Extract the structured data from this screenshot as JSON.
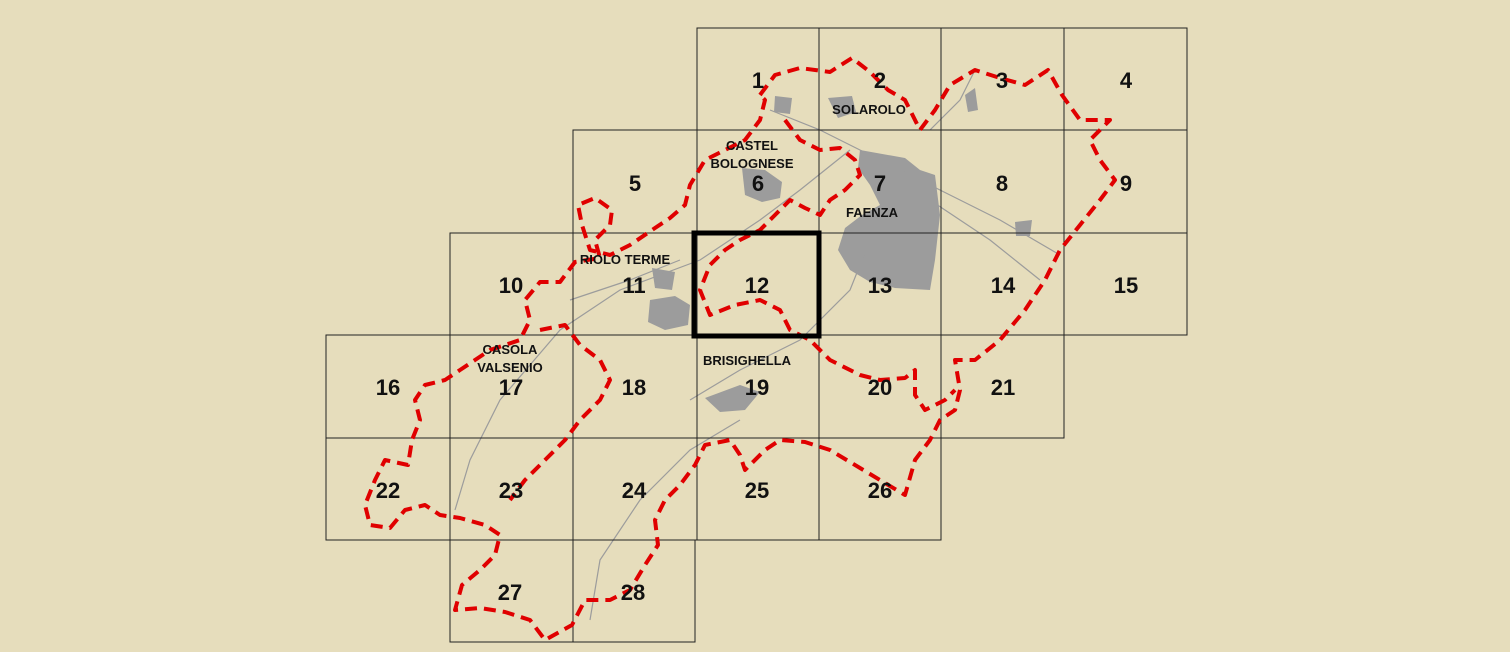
{
  "background_color": "#e6ddbc",
  "grid_line_color": "#222222",
  "boundary_color": "#e00000",
  "urban_color": "#9c9c9c",
  "highlighted_tile": "12",
  "tiles": [
    {
      "id": "1",
      "label": "1"
    },
    {
      "id": "2",
      "label": "2"
    },
    {
      "id": "3",
      "label": "3"
    },
    {
      "id": "4",
      "label": "4"
    },
    {
      "id": "5",
      "label": "5"
    },
    {
      "id": "6",
      "label": "6"
    },
    {
      "id": "7",
      "label": "7"
    },
    {
      "id": "8",
      "label": "8"
    },
    {
      "id": "9",
      "label": "9"
    },
    {
      "id": "10",
      "label": "10"
    },
    {
      "id": "11",
      "label": "11"
    },
    {
      "id": "12",
      "label": "12"
    },
    {
      "id": "13",
      "label": "13"
    },
    {
      "id": "14",
      "label": "14"
    },
    {
      "id": "15",
      "label": "15"
    },
    {
      "id": "16",
      "label": "16"
    },
    {
      "id": "17",
      "label": "17"
    },
    {
      "id": "18",
      "label": "18"
    },
    {
      "id": "19",
      "label": "19"
    },
    {
      "id": "20",
      "label": "20"
    },
    {
      "id": "21",
      "label": "21"
    },
    {
      "id": "22",
      "label": "22"
    },
    {
      "id": "23",
      "label": "23"
    },
    {
      "id": "24",
      "label": "24"
    },
    {
      "id": "25",
      "label": "25"
    },
    {
      "id": "26",
      "label": "26"
    },
    {
      "id": "27",
      "label": "27"
    },
    {
      "id": "28",
      "label": "28"
    }
  ],
  "towns": {
    "solarolo": "SOLAROLO",
    "castel_1": "CASTEL",
    "castel_2": "BOLOGNESE",
    "faenza": "FAENZA",
    "riolo_terme": "RIOLO TERME",
    "casola_1": "CASOLA",
    "casola_2": "VALSENIO",
    "brisighella": "BRISIGHELLA"
  }
}
